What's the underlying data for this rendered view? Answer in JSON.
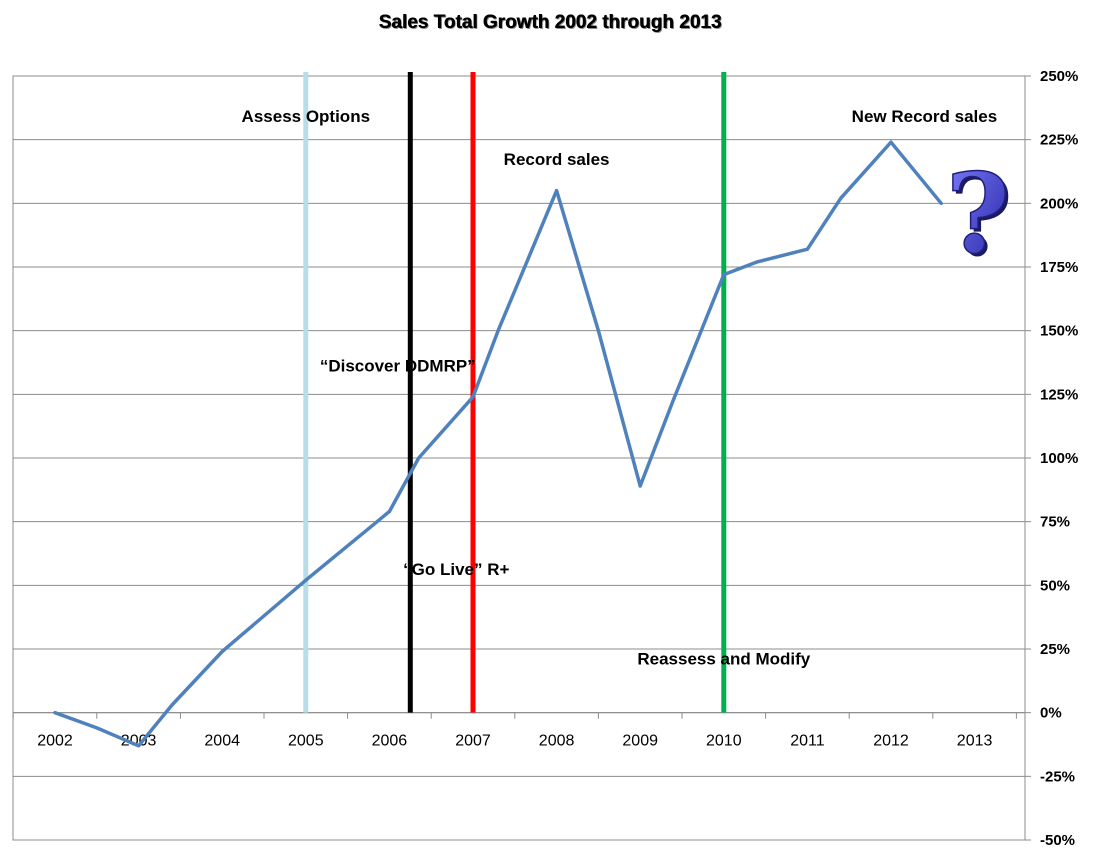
{
  "chart_data": {
    "type": "line",
    "title": "Sales Total Growth 2002 through 2013",
    "xlabel": "",
    "ylabel": "",
    "categories": [
      "2002",
      "2003",
      "2004",
      "2005",
      "2006",
      "2007",
      "2008",
      "2009",
      "2010",
      "2011",
      "2012",
      "2013"
    ],
    "x": [
      2002,
      2002.5,
      2003,
      2003.4,
      2004,
      2005,
      2006,
      2006.35,
      2007,
      2007.3,
      2008,
      2008.5,
      2009,
      2009.4,
      2010,
      2010.4,
      2011,
      2011.4,
      2012,
      2012.6
    ],
    "values": [
      0,
      -6,
      -13,
      3,
      24,
      52,
      79,
      100,
      124,
      150,
      205,
      150,
      89,
      123,
      172,
      177,
      182,
      202,
      224,
      200
    ],
    "ylim": [
      -50,
      250
    ],
    "yticks": [
      "250%",
      "225%",
      "200%",
      "175%",
      "150%",
      "125%",
      "100%",
      "75%",
      "50%",
      "25%",
      "0%",
      "-25%",
      "-50%"
    ],
    "ytick_values": [
      250,
      225,
      200,
      175,
      150,
      125,
      100,
      75,
      50,
      25,
      0,
      -25,
      -50
    ],
    "y_axis_side": "right",
    "grid": true,
    "line_color": "#4f81bd",
    "markers": [
      {
        "x": 2005,
        "color": "#b7dde8"
      },
      {
        "x": 2006.25,
        "color": "#000000"
      },
      {
        "x": 2007,
        "color": "#ff0000"
      },
      {
        "x": 2010,
        "color": "#00b050"
      }
    ],
    "annotations": [
      {
        "text": "Assess Options",
        "x": 2005,
        "y": 232
      },
      {
        "text": "Record sales",
        "x": 2008,
        "y": 215
      },
      {
        "text": "New Record sales",
        "x": 2012.4,
        "y": 232
      },
      {
        "text": "“Discover DDMRP”",
        "x": 2006.1,
        "y": 134
      },
      {
        "text": "“Go Live” R+",
        "x": 2006.8,
        "y": 54
      },
      {
        "text": "Reassess and Modify",
        "x": 2010,
        "y": 19
      }
    ],
    "question_mark_color": "#4040c0"
  },
  "question_mark": "?"
}
